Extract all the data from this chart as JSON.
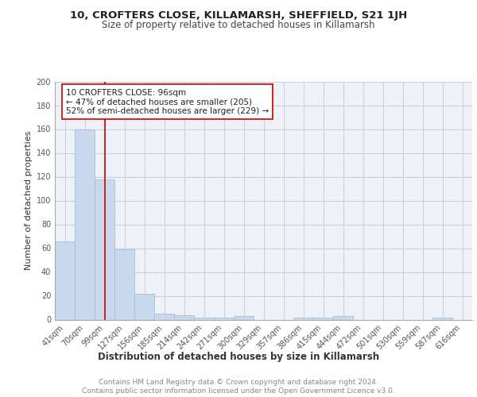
{
  "title1": "10, CROFTERS CLOSE, KILLAMARSH, SHEFFIELD, S21 1JH",
  "title2": "Size of property relative to detached houses in Killamarsh",
  "xlabel": "Distribution of detached houses by size in Killamarsh",
  "ylabel": "Number of detached properties",
  "bar_labels": [
    "41sqm",
    "70sqm",
    "99sqm",
    "127sqm",
    "156sqm",
    "185sqm",
    "214sqm",
    "242sqm",
    "271sqm",
    "300sqm",
    "329sqm",
    "357sqm",
    "386sqm",
    "415sqm",
    "444sqm",
    "472sqm",
    "501sqm",
    "530sqm",
    "559sqm",
    "587sqm",
    "616sqm"
  ],
  "bar_values": [
    66,
    160,
    118,
    59,
    22,
    5,
    4,
    2,
    2,
    3,
    0,
    0,
    2,
    2,
    3,
    0,
    0,
    0,
    0,
    2,
    0
  ],
  "bar_color": "#c8d9ed",
  "bar_edge_color": "#a0b8d8",
  "grid_color": "#c8d0dc",
  "bg_color": "#eef2f8",
  "vline_x": 2,
  "vline_color": "#cc0000",
  "annotation_text": "10 CROFTERS CLOSE: 96sqm\n← 47% of detached houses are smaller (205)\n52% of semi-detached houses are larger (229) →",
  "annotation_box_color": "#ffffff",
  "annotation_box_edge": "#cc0000",
  "footer_line1": "Contains HM Land Registry data © Crown copyright and database right 2024.",
  "footer_line2": "Contains public sector information licensed under the Open Government Licence v3.0.",
  "ylim": [
    0,
    200
  ],
  "yticks": [
    0,
    20,
    40,
    60,
    80,
    100,
    120,
    140,
    160,
    180,
    200
  ],
  "title1_fontsize": 9.5,
  "title2_fontsize": 8.5,
  "ylabel_fontsize": 8,
  "xlabel_fontsize": 8.5,
  "tick_fontsize": 7,
  "footer_fontsize": 6.5,
  "annotation_fontsize": 7.5
}
